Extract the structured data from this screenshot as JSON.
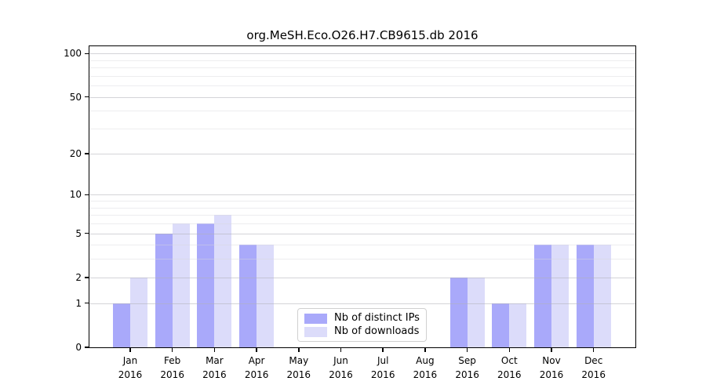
{
  "chart_data": {
    "type": "bar",
    "title": "org.MeSH.Eco.O26.H7.CB9615.db 2016",
    "x_labels": [
      {
        "month": "Jan",
        "year": "2016"
      },
      {
        "month": "Feb",
        "year": "2016"
      },
      {
        "month": "Mar",
        "year": "2016"
      },
      {
        "month": "Apr",
        "year": "2016"
      },
      {
        "month": "May",
        "year": "2016"
      },
      {
        "month": "Jun",
        "year": "2016"
      },
      {
        "month": "Jul",
        "year": "2016"
      },
      {
        "month": "Aug",
        "year": "2016"
      },
      {
        "month": "Sep",
        "year": "2016"
      },
      {
        "month": "Oct",
        "year": "2016"
      },
      {
        "month": "Nov",
        "year": "2016"
      },
      {
        "month": "Dec",
        "year": "2016"
      }
    ],
    "series": [
      {
        "name": "Nb of distinct IPs",
        "color": "#a9a9fa",
        "values": [
          1,
          5,
          6,
          4,
          0,
          0,
          0,
          0,
          2,
          1,
          4,
          4
        ]
      },
      {
        "name": "Nb of downloads",
        "color": "#dcdcfa",
        "values": [
          2,
          6,
          7,
          4,
          0,
          0,
          0,
          0,
          2,
          1,
          4,
          4
        ]
      }
    ],
    "y_axis": {
      "scale": "log1p",
      "ylim": [
        0,
        112
      ],
      "ticks": [
        {
          "value": 0,
          "label": "0"
        },
        {
          "value": 1,
          "label": "1"
        },
        {
          "value": 2,
          "label": "2"
        },
        {
          "value": 5,
          "label": "5"
        },
        {
          "value": 10,
          "label": "10"
        },
        {
          "value": 20,
          "label": "20"
        },
        {
          "value": 50,
          "label": "50"
        },
        {
          "value": 100,
          "label": "100"
        }
      ],
      "minor_gridlines": [
        3,
        4,
        6,
        7,
        8,
        9,
        30,
        40,
        60,
        70,
        80,
        90
      ]
    },
    "legend": {
      "position": "lower-center",
      "labels": [
        "Nb of distinct IPs",
        "Nb of downloads"
      ]
    },
    "grid": "on"
  }
}
